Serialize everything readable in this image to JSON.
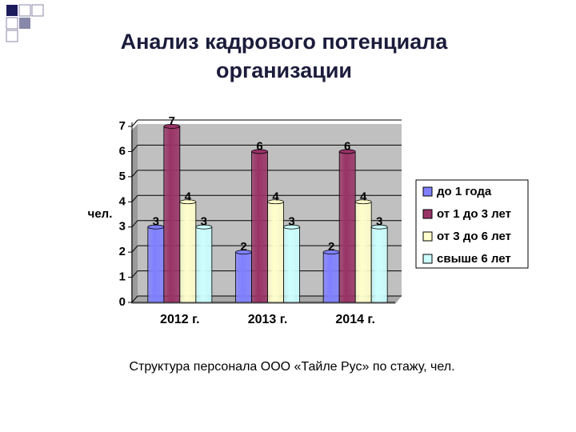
{
  "chart_data": {
    "type": "bar",
    "title": "Анализ кадрового потенциала организации",
    "y_label": "чел.",
    "caption": "Структура персонала ООО «Тайле Рус» по стажу, чел.",
    "categories": [
      "2012 г.",
      "2013 г.",
      "2014 г."
    ],
    "series": [
      {
        "name": "до 1 года",
        "color": "#8080ff",
        "values": [
          3,
          2,
          2
        ]
      },
      {
        "name": "от 1 до 3 лет",
        "color": "#993366",
        "values": [
          7,
          6,
          6
        ]
      },
      {
        "name": "от 3 до 6 лет",
        "color": "#ffffcc",
        "values": [
          4,
          4,
          4
        ]
      },
      {
        "name": "свыше 6 лет",
        "color": "#ccffff",
        "values": [
          3,
          3,
          3
        ]
      }
    ],
    "ylim": [
      0,
      7
    ],
    "yticks": [
      0,
      1,
      2,
      3,
      4,
      5,
      6,
      7
    ],
    "grid": true,
    "legend": "right"
  }
}
